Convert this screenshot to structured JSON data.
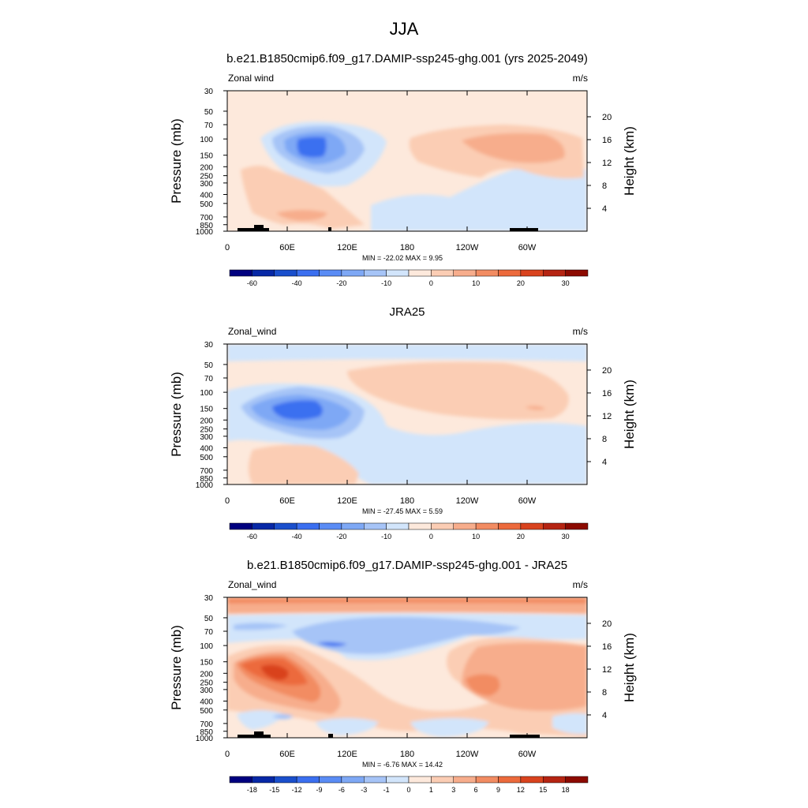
{
  "page_title": "JJA",
  "chart_data": [
    {
      "type": "heatmap",
      "title": "b.e21.B1850cmip6.f09_g17.DAMIP-ssp245-ghg.001 (yrs 2025-2049)",
      "variable_label": "Zonal wind",
      "units_label": "m/s",
      "ylabel": "Pressure (mb)",
      "ylabel_right": "Height (km)",
      "xticks": [
        "0",
        "60E",
        "120E",
        "180",
        "120W",
        "60W"
      ],
      "yticks_left": [
        "30",
        "50",
        "70",
        "100",
        "150",
        "200",
        "250",
        "300",
        "400",
        "500",
        "700",
        "850",
        "1000"
      ],
      "yticks_right": [
        "20",
        "16",
        "12",
        "8",
        "4"
      ],
      "stats_label": "MIN = -22.02  MAX =   9.95",
      "min": -22.02,
      "max": 9.95,
      "colorbar_levels": [
        "-60",
        "-40",
        "-20",
        "-10",
        "0",
        "10",
        "20",
        "30"
      ]
    },
    {
      "type": "heatmap",
      "title": "JRA25",
      "variable_label": "Zonal_wind",
      "units_label": "m/s",
      "ylabel": "Pressure (mb)",
      "ylabel_right": "Height (km)",
      "xticks": [
        "0",
        "60E",
        "120E",
        "180",
        "120W",
        "60W"
      ],
      "yticks_left": [
        "30",
        "50",
        "70",
        "100",
        "150",
        "200",
        "250",
        "300",
        "400",
        "500",
        "700",
        "850",
        "1000"
      ],
      "yticks_right": [
        "20",
        "16",
        "12",
        "8",
        "4"
      ],
      "stats_label": "MIN = -27.45  MAX =   5.59",
      "min": -27.45,
      "max": 5.59,
      "colorbar_levels": [
        "-60",
        "-40",
        "-20",
        "-10",
        "0",
        "10",
        "20",
        "30"
      ]
    },
    {
      "type": "heatmap",
      "title": "b.e21.B1850cmip6.f09_g17.DAMIP-ssp245-ghg.001 - JRA25",
      "variable_label": "Zonal_wind",
      "units_label": "m/s",
      "ylabel": "Pressure (mb)",
      "ylabel_right": "Height (km)",
      "xticks": [
        "0",
        "60E",
        "120E",
        "180",
        "120W",
        "60W"
      ],
      "yticks_left": [
        "30",
        "50",
        "70",
        "100",
        "150",
        "200",
        "250",
        "300",
        "400",
        "500",
        "700",
        "850",
        "1000"
      ],
      "yticks_right": [
        "20",
        "16",
        "12",
        "8",
        "4"
      ],
      "stats_label": "MIN = -6.76  MAX = 14.42",
      "min": -6.76,
      "max": 14.42,
      "colorbar_levels": [
        "-18",
        "-15",
        "-12",
        "-9",
        "-6",
        "-3",
        "-1",
        "0",
        "1",
        "3",
        "6",
        "9",
        "12",
        "15",
        "18"
      ]
    }
  ],
  "palette": [
    "#00007f",
    "#0728a6",
    "#1a4fcc",
    "#3b6ff0",
    "#5a8cf5",
    "#7ea8f5",
    "#a6c4f7",
    "#d2e5fb",
    "#fde9dc",
    "#fbcdb4",
    "#f7ad8c",
    "#f28c62",
    "#ec6a3c",
    "#d9431e",
    "#b52412",
    "#8c0a00"
  ]
}
